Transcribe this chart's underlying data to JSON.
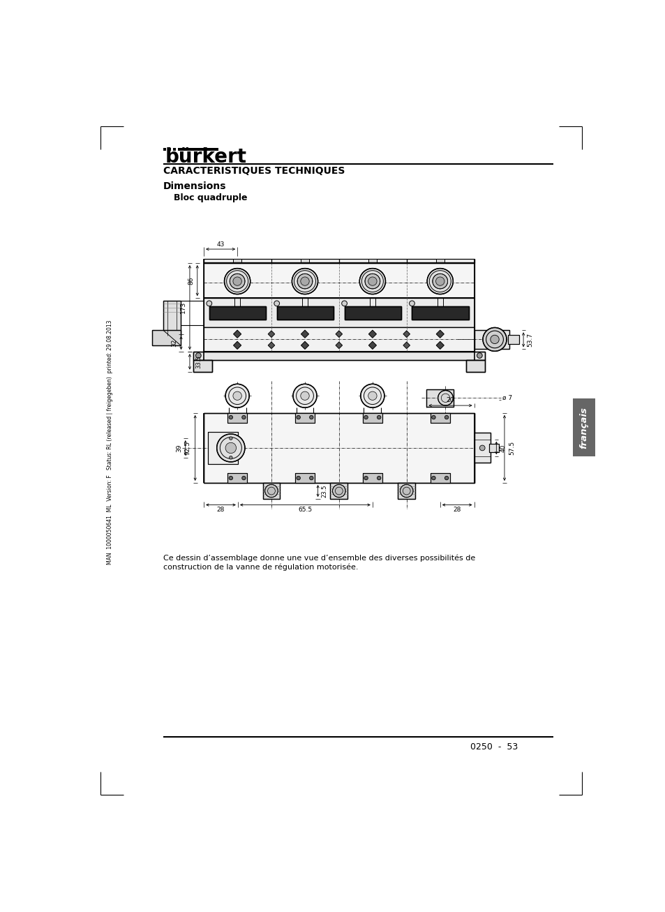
{
  "page_title": "CARACTERISTIQUES TECHNIQUES",
  "section_title": "Dimensions",
  "subsection_title": "Bloc quadruple",
  "footer_text": "0250  -  53",
  "description_text": "Ce dessin d’assemblage donne une vue d’ensemble des diverses possibilités de\nconstruction de la vanne de régulation motorisée.",
  "side_text": "MAN  1000050641  ML  Version: F   Status: RL (released | freigegeben)  printed: 29.08.2013",
  "brand_text": "bürkert",
  "bg_color": "#ffffff"
}
